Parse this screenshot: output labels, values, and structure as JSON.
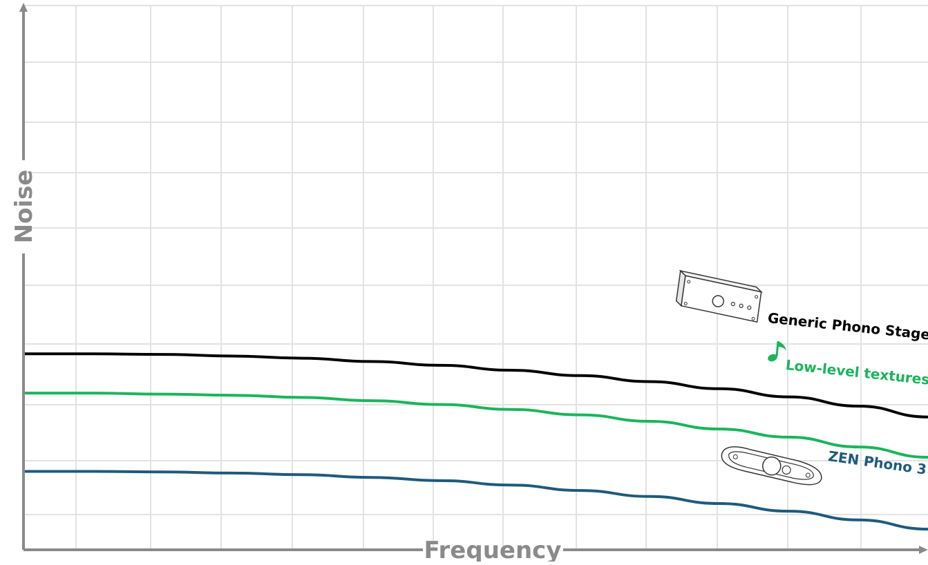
{
  "chart_data": {
    "type": "line",
    "title": "",
    "xlabel": "Frequency",
    "ylabel": "Noise",
    "xlim": [
      0,
      13
    ],
    "ylim": [
      0,
      10
    ],
    "grid": true,
    "legend": "inline-right",
    "x": [
      0,
      1,
      2,
      3,
      4,
      5,
      6,
      7,
      8,
      9,
      10,
      11,
      12,
      13
    ],
    "series": [
      {
        "name": "Generic Phono Stage",
        "color": "#000000",
        "icon": "phono-preamp-icon",
        "values": [
          3.6,
          3.6,
          3.59,
          3.56,
          3.52,
          3.46,
          3.39,
          3.3,
          3.2,
          3.09,
          2.96,
          2.81,
          2.64,
          2.44
        ]
      },
      {
        "name": "Low-level textures",
        "color": "#1ab55a",
        "icon": "music-note-icon",
        "values": [
          2.88,
          2.88,
          2.86,
          2.84,
          2.8,
          2.74,
          2.67,
          2.58,
          2.48,
          2.36,
          2.22,
          2.07,
          1.89,
          1.7
        ]
      },
      {
        "name": "ZEN Phono 3",
        "color": "#1e5a7d",
        "icon": "zen-phono-icon",
        "values": [
          1.44,
          1.44,
          1.43,
          1.41,
          1.38,
          1.33,
          1.27,
          1.19,
          1.09,
          0.98,
          0.85,
          0.71,
          0.55,
          0.38
        ]
      }
    ]
  }
}
